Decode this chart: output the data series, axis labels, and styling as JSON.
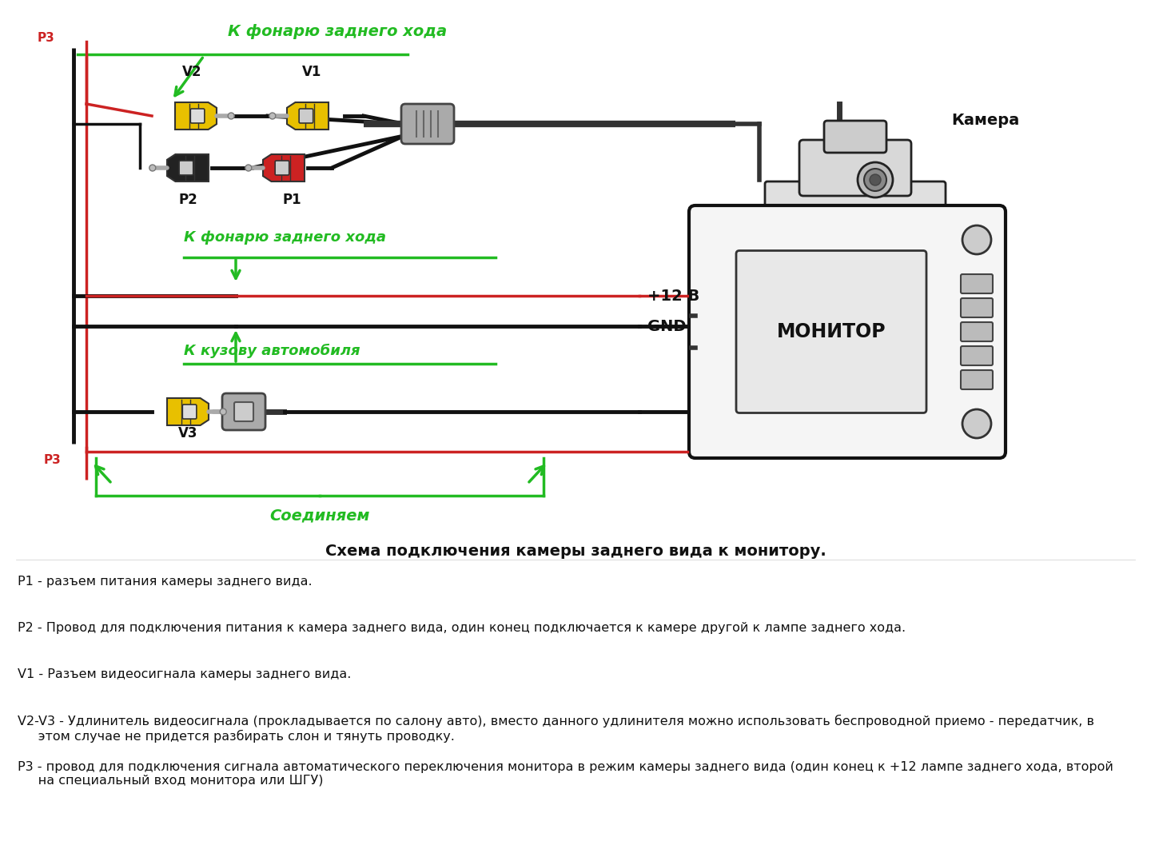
{
  "bg_color": "#ffffff",
  "title": "Схема подключения камеры заднего вида к монитору.",
  "green_color": "#22bb22",
  "red_color": "#cc2222",
  "black_color": "#111111",
  "gray_color": "#888888",
  "yellow_color": "#e8c000",
  "description_lines": [
    "Р1 - разъем питания камеры заднего вида.",
    "Р2 - Провод для подключения питания к камера заднего вида, один конец подключается к камере другой к лампе заднего хода.",
    "V1 - Разъем видеосигнала камеры заднего вида.",
    "V2-V3 - Удлинитель видеосигнала (прокладывается по салону авто), вместо данного удлинителя можно использовать беспроводной приемо - передатчик, в\n     этом случае не придется разбирать слон и тянуть проводку.",
    "Р3 - провод для подключения сигнала автоматического переключения монитора в режим камеры заднего вида (один конец к +12 лампе заднего хода, второй\n     на специальный вход монитора или ШГУ)"
  ],
  "figw": 14.4,
  "figh": 10.72
}
